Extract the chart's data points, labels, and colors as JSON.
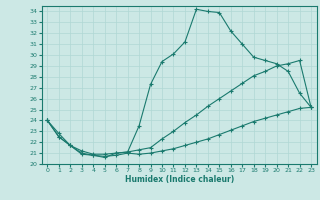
{
  "xlabel": "Humidex (Indice chaleur)",
  "line_color": "#1a7a6e",
  "bg_color": "#cce8e5",
  "grid_color": "#b0d8d4",
  "ylim": [
    20,
    34.5
  ],
  "xlim": [
    -0.5,
    23.5
  ],
  "yticks": [
    20,
    21,
    22,
    23,
    24,
    25,
    26,
    27,
    28,
    29,
    30,
    31,
    32,
    33,
    34
  ],
  "xticks": [
    0,
    1,
    2,
    3,
    4,
    5,
    6,
    7,
    8,
    9,
    10,
    11,
    12,
    13,
    14,
    15,
    16,
    17,
    18,
    19,
    20,
    21,
    22,
    23
  ],
  "line_top_x": [
    0,
    1,
    2,
    3,
    4,
    5,
    6,
    7,
    8,
    9,
    10,
    11,
    12,
    13,
    14,
    15,
    16,
    17,
    18,
    19,
    20,
    21,
    22,
    23
  ],
  "line_top_y": [
    24.0,
    22.8,
    21.7,
    20.9,
    20.8,
    20.6,
    21.0,
    21.1,
    23.5,
    27.3,
    29.4,
    30.1,
    31.2,
    34.2,
    34.0,
    33.9,
    32.2,
    31.0,
    29.8,
    29.5,
    29.2,
    28.5,
    26.5,
    25.2
  ],
  "line_mid_x": [
    0,
    1,
    2,
    3,
    4,
    5,
    6,
    7,
    8,
    9,
    10,
    11,
    12,
    13,
    14,
    15,
    16,
    17,
    18,
    19,
    20,
    21,
    22,
    23
  ],
  "line_mid_y": [
    24.0,
    22.5,
    21.7,
    21.2,
    20.9,
    20.9,
    21.0,
    21.1,
    21.3,
    21.5,
    22.3,
    23.0,
    23.8,
    24.5,
    25.3,
    26.0,
    26.7,
    27.4,
    28.1,
    28.5,
    29.0,
    29.2,
    29.5,
    25.2
  ],
  "line_bot_x": [
    0,
    1,
    2,
    3,
    4,
    5,
    6,
    7,
    8,
    9,
    10,
    11,
    12,
    13,
    14,
    15,
    16,
    17,
    18,
    19,
    20,
    21,
    22,
    23
  ],
  "line_bot_y": [
    24.0,
    22.5,
    21.7,
    21.0,
    20.8,
    20.7,
    20.8,
    21.0,
    20.9,
    21.0,
    21.2,
    21.4,
    21.7,
    22.0,
    22.3,
    22.7,
    23.1,
    23.5,
    23.9,
    24.2,
    24.5,
    24.8,
    25.1,
    25.2
  ]
}
